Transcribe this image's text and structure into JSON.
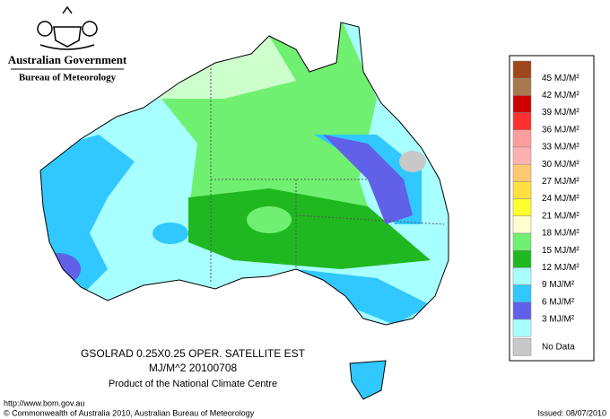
{
  "header": {
    "government": "Australian Government",
    "bureau": "Bureau of Meteorology"
  },
  "legend": {
    "items": [
      {
        "label": "45 MJ/M²",
        "color": "#a0461c"
      },
      {
        "label": "42 MJ/M²",
        "color": "#a8794c"
      },
      {
        "label": "39 MJ/M²",
        "color": "#d00000"
      },
      {
        "label": "36 MJ/M²",
        "color": "#ff3030"
      },
      {
        "label": "33 MJ/M²",
        "color": "#ff9c9c"
      },
      {
        "label": "30 MJ/M²",
        "color": "#ffb0b0"
      },
      {
        "label": "27 MJ/M²",
        "color": "#ffc870"
      },
      {
        "label": "24 MJ/M²",
        "color": "#ffe040"
      },
      {
        "label": "21 MJ/M²",
        "color": "#ffff30"
      },
      {
        "label": "18 MJ/M²",
        "color": "#ffffd0"
      },
      {
        "label": "15 MJ/M²",
        "color": "#70f070"
      },
      {
        "label": "12 MJ/M²",
        "color": "#20b820"
      },
      {
        "label": "9 MJ/M²",
        "color": "#a8ffff"
      },
      {
        "label": "6 MJ/M²",
        "color": "#30c8ff"
      },
      {
        "label": "3 MJ/M²",
        "color": "#6060e8"
      }
    ],
    "no_data": {
      "label": "No Data",
      "color": "#c8c8c8"
    }
  },
  "caption": {
    "line1": "GSOLRAD   0.25X0.25 OPER. SATELLITE EST",
    "line2": "MJ/M^2  20100708",
    "line3": "Product of the National Climate Centre"
  },
  "footer": {
    "url": "http://www.bom.gov.au",
    "copyright": "© Commonwealth of Australia 2010, Australian Bureau of Meteorology",
    "issued": "Issued: 08/07/2010"
  }
}
